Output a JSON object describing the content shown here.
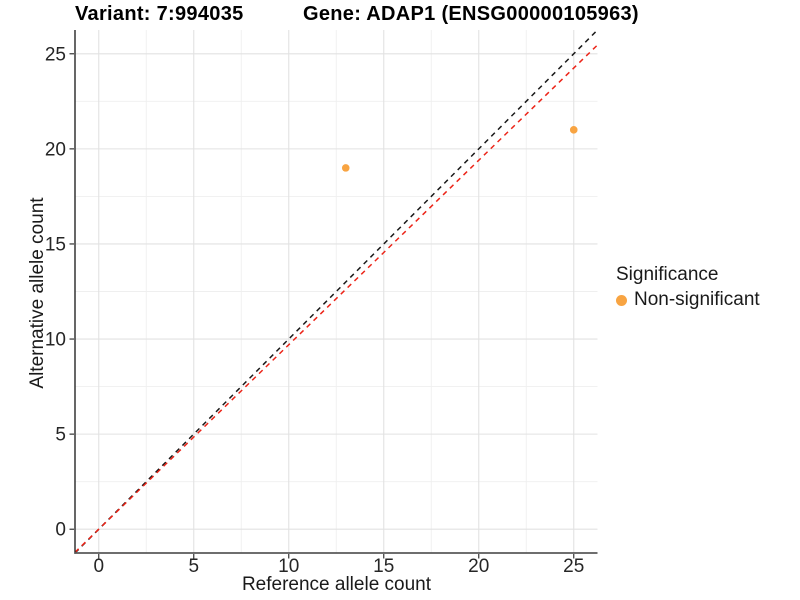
{
  "chart_data": {
    "type": "scatter",
    "title_variant": "Variant: 7:994035",
    "title_gene": "Gene: ADAP1 (ENSG00000105963)",
    "xlabel": "Reference allele count",
    "ylabel": "Alternative allele count",
    "xlim": [
      -1.25,
      26.25
    ],
    "ylim": [
      -1.25,
      26.25
    ],
    "x_ticks": [
      0,
      5,
      10,
      15,
      20,
      25
    ],
    "y_ticks": [
      0,
      5,
      10,
      15,
      20,
      25
    ],
    "minor_tick_step": 2.5,
    "grid": true,
    "legend": {
      "title": "Significance",
      "position": "right",
      "items": [
        {
          "label": "Non-significant",
          "color": "#F8A442"
        }
      ]
    },
    "series": [
      {
        "name": "Non-significant",
        "color": "#F8A442",
        "points": [
          {
            "x": 13,
            "y": 19
          },
          {
            "x": 25,
            "y": 21
          }
        ]
      }
    ],
    "reference_lines": [
      {
        "name": "identity-line",
        "slope": 1.0,
        "intercept": 0,
        "color": "#1a1a1a",
        "style": "dashed"
      },
      {
        "name": "expected-ratio-line",
        "slope": 0.97,
        "intercept": 0,
        "color": "#EC2418",
        "style": "dashed"
      }
    ],
    "colors": {
      "grid_major": "#E2E2E2",
      "grid_minor": "#EFEFEF",
      "axis_line_x": "#595959",
      "axis_line_y": "#262626",
      "tick_mark": "#333333",
      "tick_label": "#262626"
    }
  }
}
